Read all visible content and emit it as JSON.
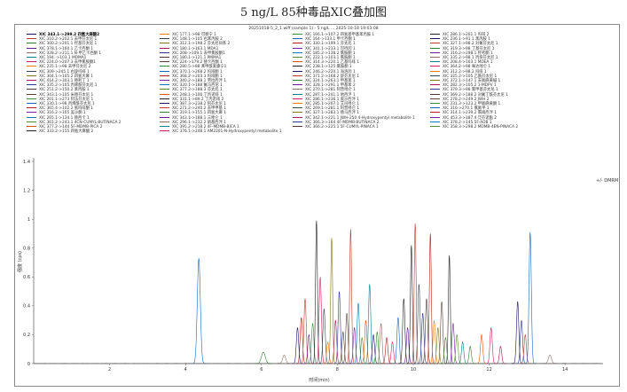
{
  "page_title": "5 ng/L 85种毒品XIC叠加图",
  "file_line": "20251018-5_2_1.wiff (sample 1) - 5 ng/L ... 2025-10-18 19:03:08",
  "legend_columns": [
    [
      "XIC 343.1->299.2 四氢大麻酸2",
      "XIC 310.2->202.1 去甲芬太尼 1",
      "XIC 300.2->201.1 羟基芬太尼 1",
      "XIC 378.1->160.1 乙卡西酮 1",
      "XIC 328.2->211.1 N-甲乙卡西酮 1",
      "XIC 194.->103.1 MDMA1",
      "XIC 224.0->207.3 去甲氯胺酮1",
      "XIC 235.1->98 去甲芬太尼 2",
      "XIC 309->245.1 右旋吗啡 1",
      "XIC 304.1->105.2 四氢大麻 1",
      "XIC 414.2->303.1 替利丁 1",
      "XIC 335.2->105 丙烯酰芬太尼 1",
      "XIC 251.2->150.2 苯丙胺 1",
      "XIC 343.1->105 米替芬太尼 1",
      "XIC 201.1->273 阿法芬太尼 1",
      "XIC 330.1->98 丙烯酰芬太尼 1",
      "XIC 365.4->102.2 氢吗啡酮 1",
      "XIC 316.2->105 美沙酮 1",
      "XIC 265.1->134.1 替西卡 1",
      "XIC 361.2->243.1 4CN-CUMYL-BUTINACA 2",
      "XIC 377.2->144 5F-MDMB-PICA 2",
      "XIC 333.2->155 四氢大麻酸 2"
    ],
    [
      "XIC 177.1->98 可替宁 1",
      "XIC 148.1->105 右苯丙胺 2",
      "XIC 312.1->198.2 芬太尼同系 2",
      "XIC 180.1->163.1 MDA1",
      "XIC 208->109.1 去甲氯胺酮1",
      "XIC 180.1->121.1 PMMA1",
      "XIC 224->179.2 替卡西酮 1",
      "XIC 280.5->88 苯甲酰爱康宁1",
      "XIC 370.1->268.2 吗啡酮 1",
      "XIC 368.2->203.3 吗啡酮 1",
      "XIC 340.2->188.1 劳拉西泮 1",
      "XIC 320.1->188 氟马西尼 1",
      "XIC 377.2->188.3 芬太尼 1",
      "XIC 248.1->100 丁丙诺啡 1",
      "XIC 331.1->89.2 丁丙诺啡 2",
      "XIC 387.3->238.2 阿芬太尼 1",
      "XIC 271.2->240.2 去甲甲基 1",
      "XIC 319.1->155.1 四氢大麻 1",
      "XIC 343.1->188.1 三唑仑 1",
      "XIC 296.1->232.2 硝基西泮 1",
      "XIC 395.2->218.2 4F-MDMB-BICA 1",
      "XIC 376.1->248.1 AM2201-N-Hydroxypentyl metabolite 1"
    ],
    [
      "XIC 166.1->107.2 四氢基甲基苯丙胺 1",
      "XIC 164->133.1 甲卡西酮 1",
      "XIC 330.1->199.1 芬太尼 1",
      "XIC 341.1->233.1 可待因 1",
      "XIC 185.2->138.2 氯胺酮 1",
      "XIC 222.1->103.1 氯胺酮 1",
      "XIC 314.3->220.1 乙基吗啡 1",
      "XIC 238.1->125 氯胺酮 1",
      "XIC 246.2->220.1 海洛因 1",
      "XIC 371.2->168.2 舒芬太尼 1",
      "XIC 324.1->263.1 甲基苯 1",
      "XIC 328.1->291.1 甲基苯 2",
      "XIC 270.1->281 阿普唑仑 1",
      "XIC 287.1->241.1 地西泮 1",
      "XIC 286.1->236.1 奥沙西泮 1",
      "XIC 285.1->267.1 艾司唑仑 1",
      "XIC 269.1->281.1 阿普唑仑 1",
      "XIC 327.1->283.1 替马西泮 1",
      "XIC 342.1->221.1 JWH-250 4-Hydroxypentyl metabolite 1",
      "XIC 366.3->164 4F-MDMB-BUTINACA 2",
      "XIC 366.2->225.1 5F-CUMYL-PINACA 1"
    ],
    [
      "XIC 286.1->201.1 吗啡 2",
      "XIC 236.1->91.1 苯丙胺 1",
      "XIC 327.1->98.2 对氟芬太尼 1",
      "XIC 319.3->98 丁基芬太尼 1",
      "XIC 316.2->298.1 羟考酮 1",
      "XIC 335.2->98.1 丙炔芬太尼 1",
      "XIC 208.4->163.1 MDEA 1",
      "XIC 364.2->98 咪达唑仑 1",
      "XIC 312.2->98.2 吗啡 1",
      "XIC 325.2->105 乙酰芬太尼 1",
      "XIC 372.1->147.1 去氧麻黄碱 1",
      "XIC 282.3->105.2 1-MDPV 1",
      "XIC 379.3->98 氯甲基芬太尼 1",
      "XIC 369.2->188.2 对氟丁酰芬太尼 1",
      "XIC 278.2->249.2 JWH 2",
      "XIC 231.3->123.2 甲氧麻黄酮 1",
      "XIC 316->270.1 氯氮平 1",
      "XIC 314.1->239.2 氯硝西泮 1",
      "XIC 453.3->187.4 泛芬诺酯 2",
      "XIC 378.2->145 5F-ADB 1",
      "XIC 358.3->298.2 MDMB-4EN-PINACA 2"
    ]
  ],
  "colors": [
    "#1b1464",
    "#c0392b",
    "#2e7d32",
    "#6a1b9a",
    "#8d6e63",
    "#00838f",
    "#d81b60",
    "#f57c00",
    "#37474f",
    "#827717",
    "#ad1457",
    "#283593",
    "#4e342e",
    "#5d4037",
    "#388e3c",
    "#1565c0",
    "#b71c1c",
    "#7b1fa2",
    "#0277bd",
    "#558b2f",
    "#e65100",
    "#212121"
  ],
  "legend_tag": "+/- DMRM",
  "chart_data": {
    "type": "line",
    "title": "5 ng/L 85种毒品XIC叠加图",
    "xlabel": "时间(min)",
    "ylabel": "强度 (cps)",
    "xlim": [
      0,
      15
    ],
    "ylim": [
      0,
      1.4
    ],
    "x_ticks": [
      2,
      4,
      6,
      8,
      10,
      12,
      14
    ],
    "y_ticks": [
      0,
      0.2,
      0.4,
      0.6,
      0.8,
      1,
      1.2,
      1.4
    ],
    "series": [
      {
        "t": 4.35,
        "h": 0.73,
        "w": 0.04,
        "c": 15
      },
      {
        "t": 6.05,
        "h": 0.08,
        "w": 0.05,
        "c": 2
      },
      {
        "t": 6.6,
        "h": 0.06,
        "w": 0.04,
        "c": 4
      },
      {
        "t": 6.95,
        "h": 0.25,
        "w": 0.03,
        "c": 0
      },
      {
        "t": 7.05,
        "h": 0.32,
        "w": 0.03,
        "c": 16
      },
      {
        "t": 7.15,
        "h": 0.45,
        "w": 0.03,
        "c": 1
      },
      {
        "t": 7.25,
        "h": 0.2,
        "w": 0.03,
        "c": 3
      },
      {
        "t": 7.35,
        "h": 0.28,
        "w": 0.03,
        "c": 14
      },
      {
        "t": 7.45,
        "h": 0.99,
        "w": 0.025,
        "c": 21
      },
      {
        "t": 7.55,
        "h": 0.6,
        "w": 0.03,
        "c": 6
      },
      {
        "t": 7.65,
        "h": 0.38,
        "w": 0.03,
        "c": 8
      },
      {
        "t": 7.75,
        "h": 0.15,
        "w": 0.03,
        "c": 7
      },
      {
        "t": 7.85,
        "h": 0.87,
        "w": 0.025,
        "c": 9
      },
      {
        "t": 7.95,
        "h": 0.3,
        "w": 0.03,
        "c": 10
      },
      {
        "t": 8.05,
        "h": 0.5,
        "w": 0.03,
        "c": 11
      },
      {
        "t": 8.15,
        "h": 0.22,
        "w": 0.03,
        "c": 12
      },
      {
        "t": 8.25,
        "h": 0.35,
        "w": 0.03,
        "c": 13
      },
      {
        "t": 8.35,
        "h": 0.93,
        "w": 0.025,
        "c": 1
      },
      {
        "t": 8.45,
        "h": 0.25,
        "w": 0.03,
        "c": 17
      },
      {
        "t": 8.55,
        "h": 0.42,
        "w": 0.03,
        "c": 18
      },
      {
        "t": 8.65,
        "h": 0.18,
        "w": 0.03,
        "c": 19
      },
      {
        "t": 8.75,
        "h": 0.3,
        "w": 0.03,
        "c": 20
      },
      {
        "t": 8.85,
        "h": 0.55,
        "w": 0.03,
        "c": 5
      },
      {
        "t": 8.95,
        "h": 0.2,
        "w": 0.03,
        "c": 0
      },
      {
        "t": 9.05,
        "h": 0.22,
        "w": 0.03,
        "c": 2
      },
      {
        "t": 9.15,
        "h": 0.28,
        "w": 0.03,
        "c": 4
      },
      {
        "t": 9.3,
        "h": 0.18,
        "w": 0.03,
        "c": 16
      },
      {
        "t": 9.45,
        "h": 0.15,
        "w": 0.03,
        "c": 6
      },
      {
        "t": 9.6,
        "h": 0.32,
        "w": 0.03,
        "c": 15
      },
      {
        "t": 9.75,
        "h": 0.45,
        "w": 0.03,
        "c": 21
      },
      {
        "t": 9.85,
        "h": 0.25,
        "w": 0.03,
        "c": 3
      },
      {
        "t": 9.95,
        "h": 0.82,
        "w": 0.025,
        "c": 21
      },
      {
        "t": 10.05,
        "h": 0.97,
        "w": 0.025,
        "c": 1
      },
      {
        "t": 10.15,
        "h": 0.55,
        "w": 0.03,
        "c": 8
      },
      {
        "t": 10.25,
        "h": 0.35,
        "w": 0.03,
        "c": 11
      },
      {
        "t": 10.35,
        "h": 0.45,
        "w": 0.03,
        "c": 12
      },
      {
        "t": 10.45,
        "h": 0.9,
        "w": 0.025,
        "c": 16
      },
      {
        "t": 10.55,
        "h": 0.3,
        "w": 0.03,
        "c": 7
      },
      {
        "t": 10.65,
        "h": 0.25,
        "w": 0.03,
        "c": 9
      },
      {
        "t": 10.75,
        "h": 0.43,
        "w": 0.03,
        "c": 13
      },
      {
        "t": 10.85,
        "h": 0.18,
        "w": 0.03,
        "c": 14
      },
      {
        "t": 10.95,
        "h": 0.75,
        "w": 0.025,
        "c": 21
      },
      {
        "t": 11.05,
        "h": 0.28,
        "w": 0.03,
        "c": 17
      },
      {
        "t": 11.15,
        "h": 0.2,
        "w": 0.03,
        "c": 19
      },
      {
        "t": 11.3,
        "h": 0.15,
        "w": 0.03,
        "c": 5
      },
      {
        "t": 11.5,
        "h": 0.12,
        "w": 0.03,
        "c": 2
      },
      {
        "t": 11.8,
        "h": 0.2,
        "w": 0.03,
        "c": 20
      },
      {
        "t": 12.05,
        "h": 0.25,
        "w": 0.03,
        "c": 6
      },
      {
        "t": 12.3,
        "h": 0.12,
        "w": 0.03,
        "c": 10
      },
      {
        "t": 12.75,
        "h": 0.43,
        "w": 0.03,
        "c": 0
      },
      {
        "t": 12.85,
        "h": 0.3,
        "w": 0.03,
        "c": 11
      },
      {
        "t": 12.95,
        "h": 0.2,
        "w": 0.03,
        "c": 1
      },
      {
        "t": 13.08,
        "h": 0.91,
        "w": 0.03,
        "c": 15
      },
      {
        "t": 13.6,
        "h": 0.06,
        "w": 0.04,
        "c": 4
      }
    ]
  }
}
